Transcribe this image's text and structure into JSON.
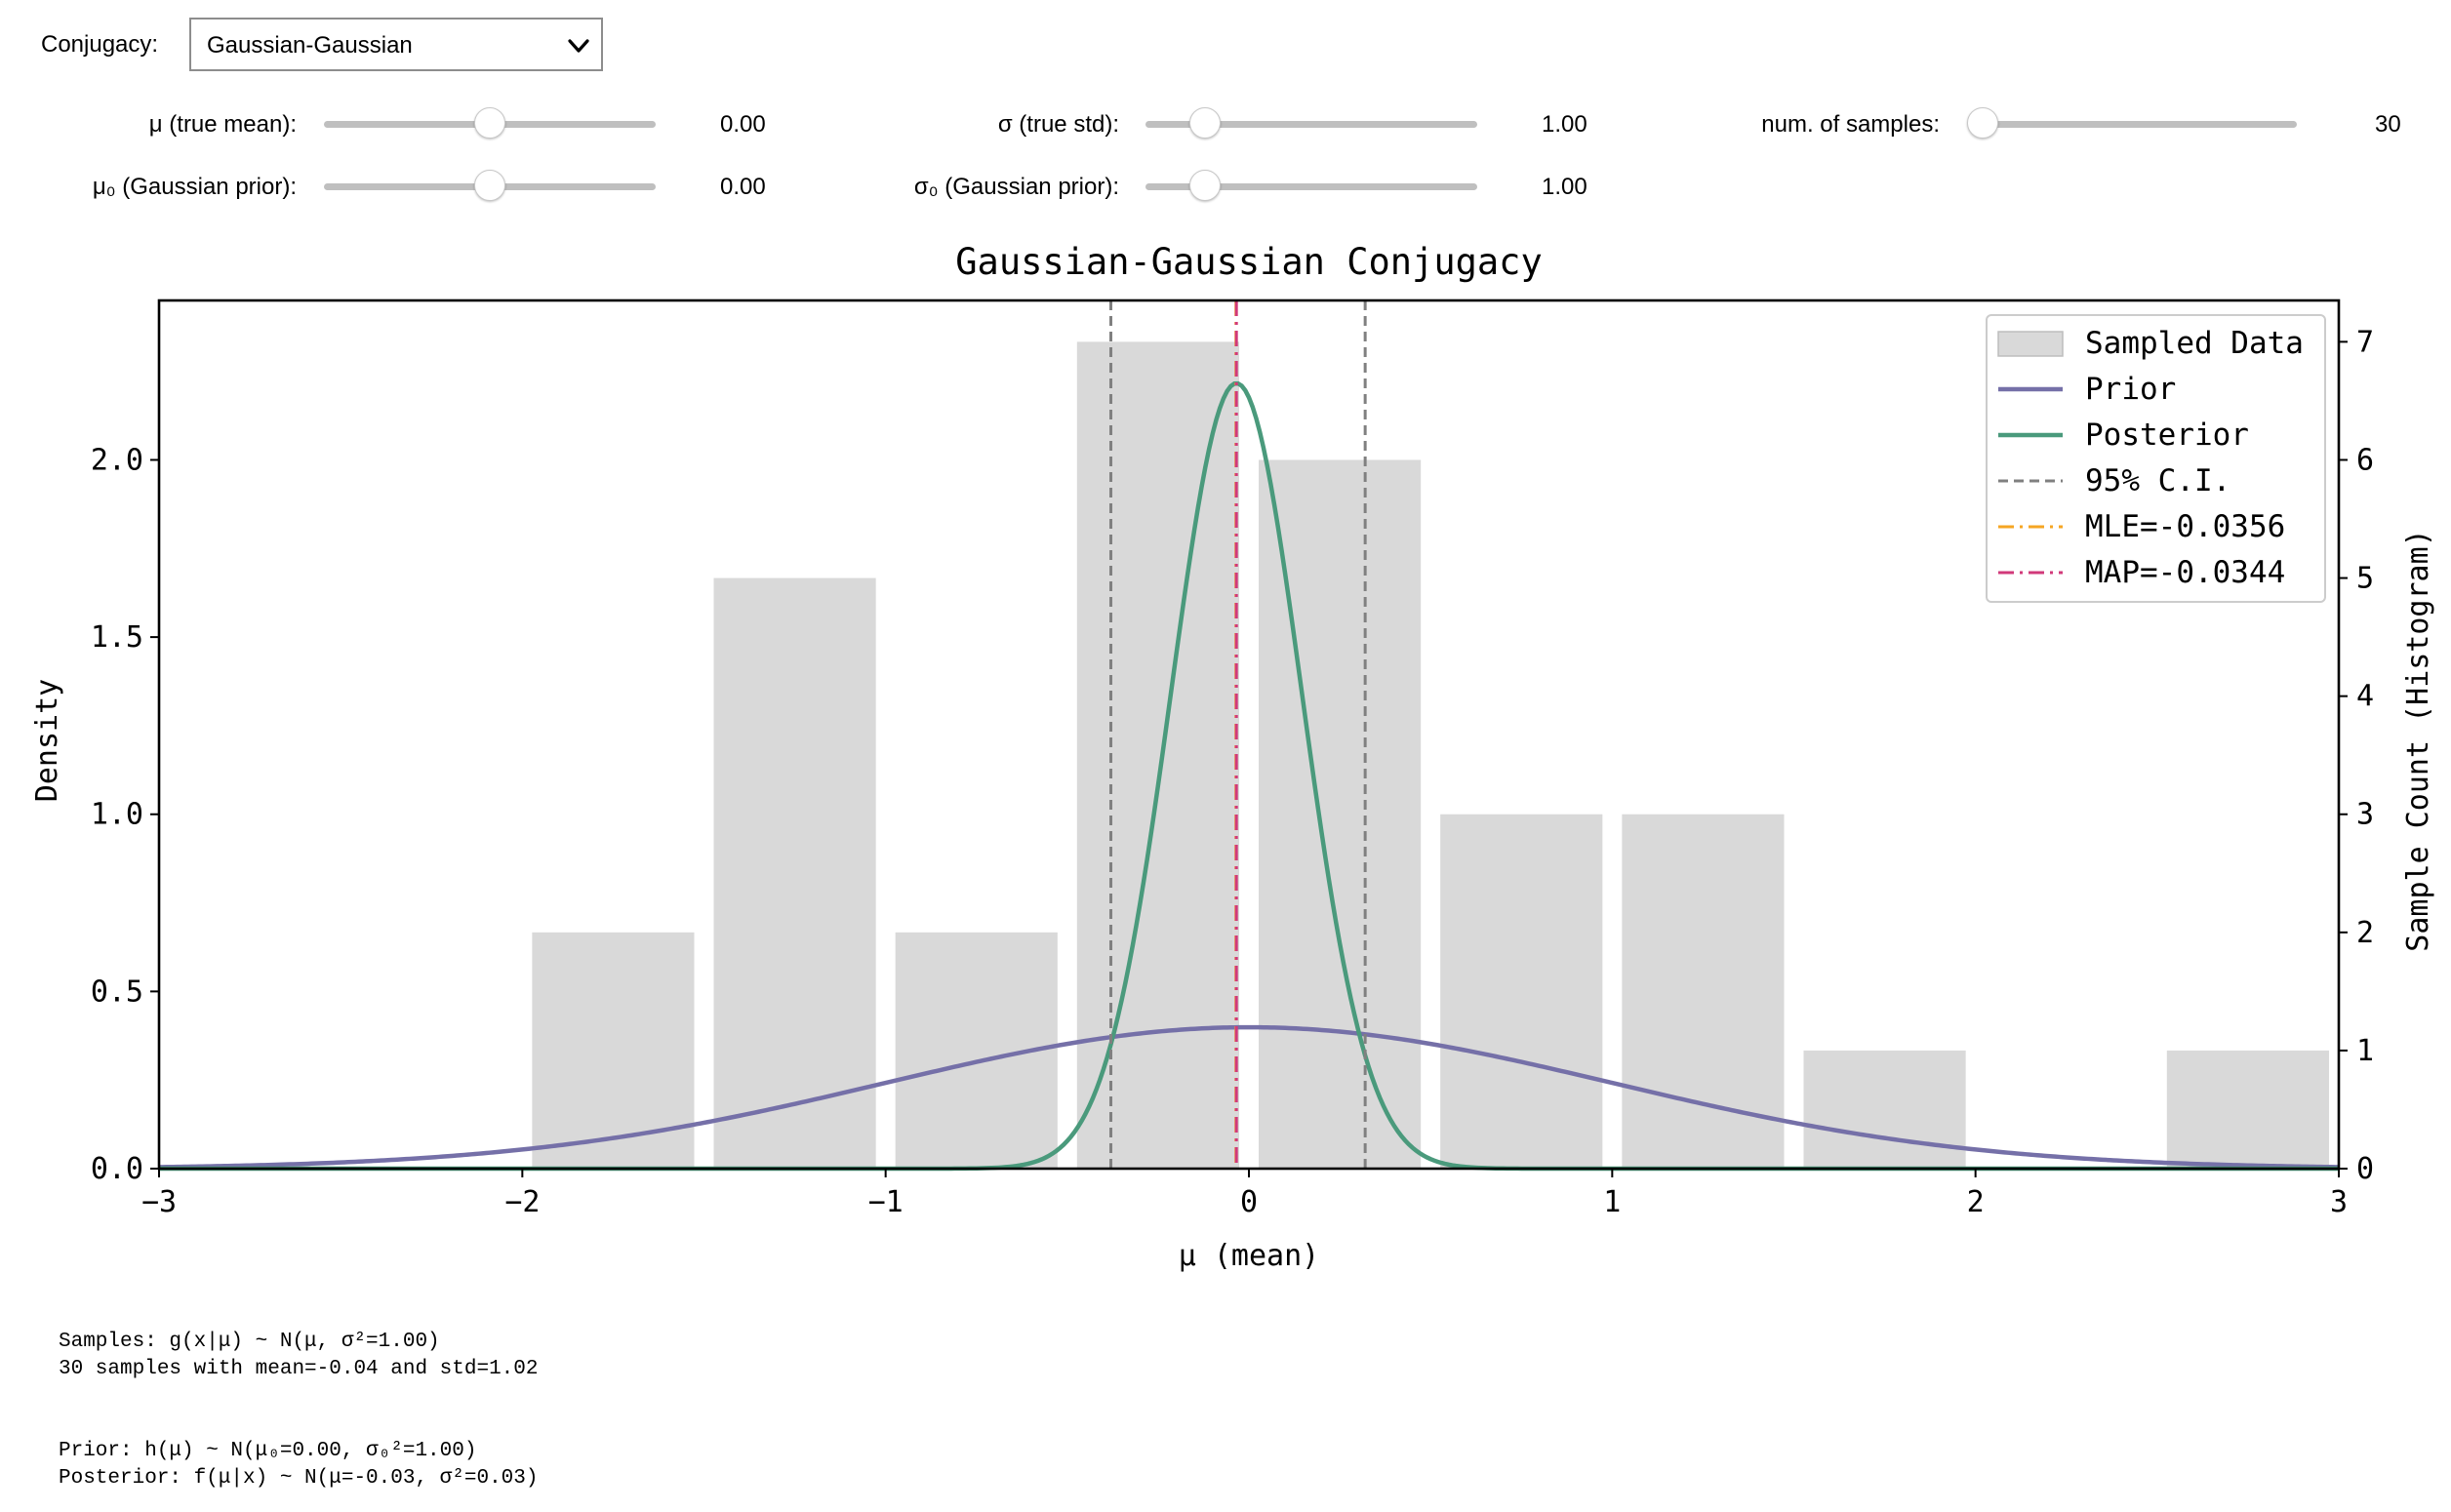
{
  "controls": {
    "conjugacy": {
      "label": "Conjugacy:",
      "value": "Gaussian-Gaussian"
    },
    "sliders": [
      {
        "id": "mu",
        "label": "μ (true mean):",
        "value_text": "0.00",
        "fraction": 0.5
      },
      {
        "id": "sigma",
        "label": "σ (true std):",
        "value_text": "1.00",
        "fraction": 0.18
      },
      {
        "id": "n",
        "label": "num. of samples:",
        "value_text": "30",
        "fraction": 0.0
      },
      {
        "id": "mu0",
        "label": "μ₀ (Gaussian prior):",
        "value_text": "0.00",
        "fraction": 0.5
      },
      {
        "id": "sigma0",
        "label": "σ₀ (Gaussian prior):",
        "value_text": "1.00",
        "fraction": 0.18
      }
    ]
  },
  "chart_data": {
    "type": "bar",
    "title": "Gaussian-Gaussian Conjugacy",
    "xlabel": "μ (mean)",
    "ylabel_left": "Density",
    "ylabel_right": "Sample Count (Histogram)",
    "xlim": [
      -3,
      3
    ],
    "ylim_left": [
      0,
      2.45
    ],
    "ylim_right": [
      0,
      7.35
    ],
    "x_ticks": [
      {
        "v": -3,
        "label": "−3"
      },
      {
        "v": -2,
        "label": "−2"
      },
      {
        "v": -1,
        "label": "−1"
      },
      {
        "v": 0,
        "label": "0"
      },
      {
        "v": 1,
        "label": "1"
      },
      {
        "v": 2,
        "label": "2"
      },
      {
        "v": 3,
        "label": "3"
      }
    ],
    "y_ticks_left": [
      {
        "v": 0,
        "label": "0.0"
      },
      {
        "v": 0.5,
        "label": "0.5"
      },
      {
        "v": 1.0,
        "label": "1.0"
      },
      {
        "v": 1.5,
        "label": "1.5"
      },
      {
        "v": 2.0,
        "label": "2.0"
      }
    ],
    "y_ticks_right": [
      {
        "v": 0,
        "label": "0"
      },
      {
        "v": 1,
        "label": "1"
      },
      {
        "v": 2,
        "label": "2"
      },
      {
        "v": 3,
        "label": "3"
      },
      {
        "v": 4,
        "label": "4"
      },
      {
        "v": 5,
        "label": "5"
      },
      {
        "v": 6,
        "label": "6"
      },
      {
        "v": 7,
        "label": "7"
      }
    ],
    "histogram": {
      "name": "Sampled Data",
      "bins": [
        {
          "x0": -2.0,
          "x1": -1.5,
          "count": 2
        },
        {
          "x0": -1.5,
          "x1": -1.0,
          "count": 5
        },
        {
          "x0": -1.0,
          "x1": -0.5,
          "count": 2
        },
        {
          "x0": -0.5,
          "x1": 0.0,
          "count": 7
        },
        {
          "x0": 0.0,
          "x1": 0.5,
          "count": 6
        },
        {
          "x0": 0.5,
          "x1": 1.0,
          "count": 3
        },
        {
          "x0": 1.0,
          "x1": 1.5,
          "count": 3
        },
        {
          "x0": 1.5,
          "x1": 2.0,
          "count": 1
        },
        {
          "x0": 2.0,
          "x1": 2.5,
          "count": 0
        },
        {
          "x0": 2.5,
          "x1": 3.0,
          "count": 1
        }
      ]
    },
    "series": [
      {
        "name": "Prior",
        "kind": "gaussian",
        "mean": 0.0,
        "std": 1.0
      },
      {
        "name": "Posterior",
        "kind": "gaussian",
        "mean": -0.0344,
        "std": 0.18
      }
    ],
    "vlines": [
      {
        "name": "95% C.I.",
        "x": -0.38,
        "style": "dashed"
      },
      {
        "name": "95% C.I.",
        "x": 0.32,
        "style": "dashed"
      },
      {
        "name": "MLE=-0.0356",
        "x": -0.0356,
        "style": "dashdot"
      },
      {
        "name": "MAP=-0.0344",
        "x": -0.0344,
        "style": "dashdot"
      }
    ],
    "legend_position": "top-right",
    "legend": [
      {
        "label": "Sampled Data",
        "kind": "patch",
        "color": "#d9d9d9"
      },
      {
        "label": "Prior",
        "kind": "line",
        "color": "#7570a8"
      },
      {
        "label": "Posterior",
        "kind": "line",
        "color": "#4a9a7c"
      },
      {
        "label": "95% C.I.",
        "kind": "dashed",
        "color": "#808080"
      },
      {
        "label": "MLE=-0.0356",
        "kind": "dashdot",
        "color": "#f5a623"
      },
      {
        "label": "MAP=-0.0344",
        "kind": "dashdot",
        "color": "#d1397a"
      }
    ],
    "colors": {
      "bars": "#d9d9d9",
      "prior": "#7570a8",
      "posterior": "#4a9a7c",
      "ci": "#808080",
      "mle": "#f5a623",
      "map": "#d1397a"
    }
  },
  "footer": {
    "samples_line1": "Samples: g(x|μ) ~ N(μ, σ²=1.00)",
    "samples_line2": "30 samples with mean=-0.04 and std=1.02",
    "prior_line": "Prior: h(μ) ~ N(μ₀=0.00, σ₀²=1.00)",
    "posterior_line": "Posterior: f(μ|x) ~ N(μ=-0.03, σ²=0.03)"
  }
}
